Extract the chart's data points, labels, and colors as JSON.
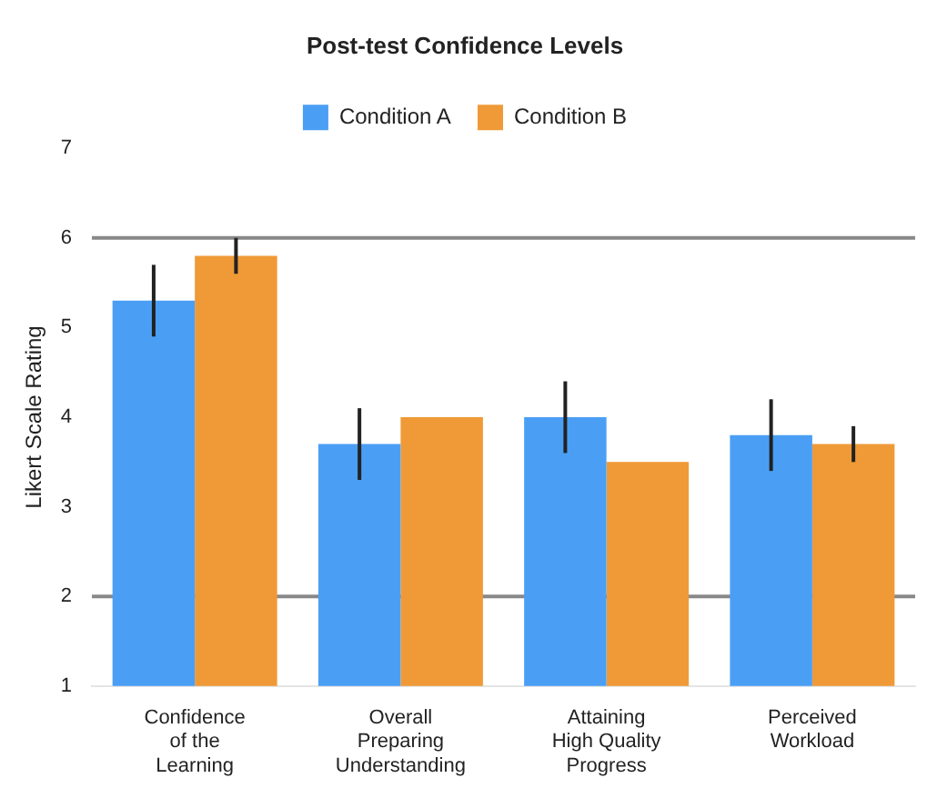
{
  "chart_data": {
    "type": "bar",
    "title": "Post-test Confidence Levels",
    "ylabel": "Likert Scale Rating",
    "categories": [
      [
        "Confidence",
        "of the",
        "Learning"
      ],
      [
        "Overall",
        "Preparing",
        "Understanding"
      ],
      [
        "Attaining",
        "High Quality",
        "Progress"
      ],
      [
        "Perceived",
        "Workload"
      ]
    ],
    "series": [
      {
        "name": "Condition A",
        "color": "#4a9ff5",
        "values": [
          5.3,
          3.7,
          4.0,
          3.8
        ],
        "errors": [
          0.4,
          0.4,
          0.4,
          0.4
        ]
      },
      {
        "name": "Condition B",
        "color": "#ef9a37",
        "values": [
          5.8,
          4.0,
          3.5,
          3.7
        ],
        "errors": [
          0.2,
          null,
          null,
          0.2
        ]
      }
    ],
    "ylim": [
      1,
      7
    ],
    "yticks": [
      1,
      2,
      3,
      4,
      5,
      6,
      7
    ],
    "grid": false,
    "legend": "top",
    "ref_lines": [
      {
        "axis": "y",
        "value": 2,
        "color": "#888888"
      },
      {
        "axis": "y",
        "value": 6,
        "color": "#888888"
      }
    ]
  }
}
